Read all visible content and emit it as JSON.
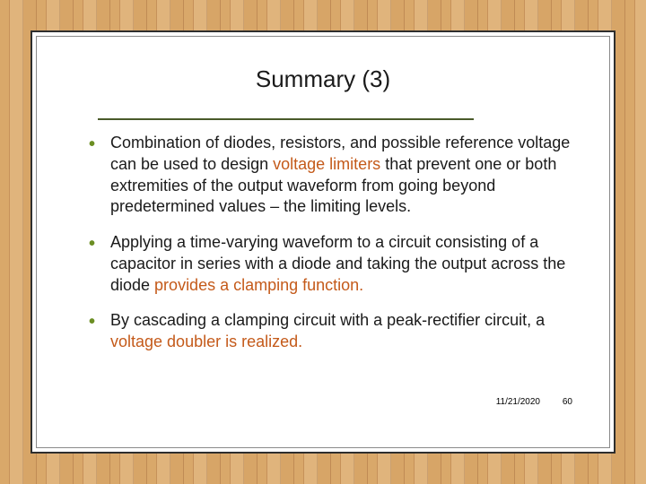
{
  "slide": {
    "title": "Summary (3)",
    "separator_color": "#4a5a2a",
    "bullet_color": "#6b8e23",
    "highlight_color": "#c45a1a",
    "bullets": [
      {
        "prefix": "Combination of diodes, resistors, and possible reference voltage can be used to design ",
        "hl1": "voltage limiters",
        "mid": " that prevent one or both extremities of the output waveform from going beyond predetermined values – the limiting levels."
      },
      {
        "prefix": "Applying a time-varying waveform to a circuit consisting of a capacitor in series with a diode and taking the output across the diode ",
        "hl1": "provides a clamping function.",
        "mid": ""
      },
      {
        "prefix": "By cascading a clamping circuit with a peak-rectifier circuit, a ",
        "hl1": "voltage doubler is realized.",
        "mid": ""
      }
    ],
    "date": "11/21/2020",
    "page_number": "60"
  },
  "background": {
    "wood_tones": [
      "#d9a86a",
      "#c6915a",
      "#e0b47c",
      "#caa070",
      "#d7a567",
      "#c08b55"
    ]
  }
}
